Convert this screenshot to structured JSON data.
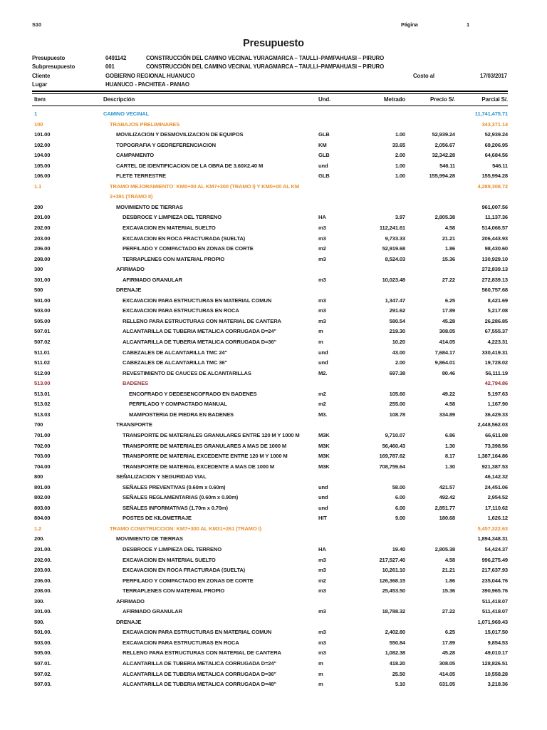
{
  "page": {
    "app_tag": "S10",
    "page_label": "Página",
    "page_number": "1"
  },
  "title": "Presupuesto",
  "meta": {
    "presupuesto_label": "Presupuesto",
    "presupuesto_code": "0491142",
    "presupuesto_name": "CONSTRUCCIÓN DEL CAMINO VECINAL YURAGMARCA – TAULLI–PAMPAHUASI – PIRURO",
    "subpresupuesto_label": "Subpresupuesto",
    "subpresupuesto_code": "001",
    "subpresupuesto_name": "CONSTRUCCIÓN DEL CAMINO VECINAL YURAGMARCA – TAULLI–PAMPAHUASI – PIRURO",
    "cliente_label": "Cliente",
    "cliente_name": "GOBIERNO REGIONAL HUANUCO",
    "costo_label": "Costo al",
    "costo_fecha": "17/03/2017",
    "lugar_label": "Lugar",
    "lugar_name": "HUANUCO - PACHITEA - PANAO"
  },
  "colors": {
    "blue": "#2E96D0",
    "orange": "#E8912E",
    "red": "#9C3232",
    "text": "#1C1C1C"
  },
  "table": {
    "headers": {
      "item": "Item",
      "desc": "Descripción",
      "und": "Und.",
      "metrado": "Metrado",
      "precio": "Precio S/.",
      "parcial": "Parcial S/."
    },
    "rows": [
      {
        "item": "1",
        "desc": "CAMINO VECINAL",
        "und": "",
        "metrado": "",
        "precio": "",
        "parcial": "11,741,475.71",
        "level": 1,
        "color": "blue"
      },
      {
        "item": "100",
        "desc": "TRABAJOS PRELIMINARES",
        "und": "",
        "metrado": "",
        "precio": "",
        "parcial": "343,371.14",
        "level": 2,
        "color": "orange"
      },
      {
        "item": "101.00",
        "desc": "MOVILIZACION Y DESMOVILIZACION DE EQUIPOS",
        "und": "GLB",
        "metrado": "1.00",
        "precio": "52,939.24",
        "parcial": "52,939.24",
        "level": 3,
        "color": ""
      },
      {
        "item": "102.00",
        "desc": "TOPOGRAFIA Y GEOREFERENCIACION",
        "und": "KM",
        "metrado": "33.65",
        "precio": "2,056.67",
        "parcial": "69,206.95",
        "level": 3,
        "color": ""
      },
      {
        "item": "104.00",
        "desc": "CAMPAMENTO",
        "und": "GLB",
        "metrado": "2.00",
        "precio": "32,342.28",
        "parcial": "64,684.56",
        "level": 3,
        "color": ""
      },
      {
        "item": "105.00",
        "desc": "CARTEL DE IDENTIFICACION DE LA OBRA DE 3.60X2.40 M",
        "und": "und",
        "metrado": "1.00",
        "precio": "546.11",
        "parcial": "546.11",
        "level": 3,
        "color": ""
      },
      {
        "item": "106.00",
        "desc": "FLETE TERRESTRE",
        "und": "GLB",
        "metrado": "1.00",
        "precio": "155,994.28",
        "parcial": "155,994.28",
        "level": 3,
        "color": ""
      },
      {
        "item": "1.1",
        "desc": "TRAMO MEJORAMIENTO: KM0+00 AL KM7+300 (TRAMO I) Y KM0+00 AL KM 2+391 (TRAMO II)",
        "und": "",
        "metrado": "",
        "precio": "",
        "parcial": "4,289,308.72",
        "level": 2,
        "color": "orange"
      },
      {
        "item": "200",
        "desc": "MOVIMIENTO DE TIERRAS",
        "und": "",
        "metrado": "",
        "precio": "",
        "parcial": "961,007.56",
        "level": 3,
        "color": ""
      },
      {
        "item": "201.00",
        "desc": "DESBROCE Y LIMPIEZA DEL TERRENO",
        "und": "HA",
        "metrado": "3.97",
        "precio": "2,805.38",
        "parcial": "11,137.36",
        "level": 4,
        "color": ""
      },
      {
        "item": "202.00",
        "desc": "EXCAVACION EN MATERIAL SUELTO",
        "und": "m3",
        "metrado": "112,241.61",
        "precio": "4.58",
        "parcial": "514,066.57",
        "level": 4,
        "color": ""
      },
      {
        "item": "203.00",
        "desc": "EXCAVACION EN ROCA FRACTURADA (SUELTA)",
        "und": "m3",
        "metrado": "9,733.33",
        "precio": "21.21",
        "parcial": "206,443.93",
        "level": 4,
        "color": ""
      },
      {
        "item": "206.00",
        "desc": "PERFILADO Y COMPACTADO EN ZONAS DE CORTE",
        "und": "m2",
        "metrado": "52,919.68",
        "precio": "1.86",
        "parcial": "98,430.60",
        "level": 4,
        "color": ""
      },
      {
        "item": "208.00",
        "desc": "TERRAPLENES CON MATERIAL PROPIO",
        "und": "m3",
        "metrado": "8,524.03",
        "precio": "15.36",
        "parcial": "130,929.10",
        "level": 4,
        "color": ""
      },
      {
        "item": "300",
        "desc": "AFIRMADO",
        "und": "",
        "metrado": "",
        "precio": "",
        "parcial": "272,839.13",
        "level": 3,
        "color": ""
      },
      {
        "item": "301.00",
        "desc": "AFIRMADO GRANULAR",
        "und": "m3",
        "metrado": "10,023.48",
        "precio": "27.22",
        "parcial": "272,839.13",
        "level": 4,
        "color": ""
      },
      {
        "item": "500",
        "desc": "DRENAJE",
        "und": "",
        "metrado": "",
        "precio": "",
        "parcial": "560,757.68",
        "level": 3,
        "color": ""
      },
      {
        "item": "501.00",
        "desc": "EXCAVACION PARA ESTRUCTURAS EN MATERIAL COMUN",
        "und": "m3",
        "metrado": "1,347.47",
        "precio": "6.25",
        "parcial": "8,421.69",
        "level": 4,
        "color": ""
      },
      {
        "item": "503.00",
        "desc": "EXCAVACION PARA ESTRUCTURAS EN ROCA",
        "und": "m3",
        "metrado": "291.62",
        "precio": "17.89",
        "parcial": "5,217.08",
        "level": 4,
        "color": ""
      },
      {
        "item": "505.00",
        "desc": "RELLENO PARA ESTRUCTURAS CON MATERIAL DE CANTERA",
        "und": "m3",
        "metrado": "580.54",
        "precio": "45.28",
        "parcial": "26,286.85",
        "level": 4,
        "color": ""
      },
      {
        "item": "507.01",
        "desc": "ALCANTARILLA DE TUBERIA METALICA CORRUGADA D=24\"",
        "und": "m",
        "metrado": "219.30",
        "precio": "308.05",
        "parcial": "67,555.37",
        "level": 4,
        "color": ""
      },
      {
        "item": "507.02",
        "desc": "ALCANTARILLA DE TUBERIA METALICA CORRUGADA D=36\"",
        "und": "m",
        "metrado": "10.20",
        "precio": "414.05",
        "parcial": "4,223.31",
        "level": 4,
        "color": ""
      },
      {
        "item": "511.01",
        "desc": "CABEZALES DE ALCANTARILLA TMC 24\"",
        "und": "und",
        "metrado": "43.00",
        "precio": "7,684.17",
        "parcial": "330,419.31",
        "level": 4,
        "color": ""
      },
      {
        "item": "511.02",
        "desc": "CABEZALES DE ALCANTARILLA TMC 36\"",
        "und": "und",
        "metrado": "2.00",
        "precio": "9,864.01",
        "parcial": "19,728.02",
        "level": 4,
        "color": ""
      },
      {
        "item": "512.00",
        "desc": "REVESTIMIENTO DE CAUCES DE ALCANTARILLAS",
        "und": "M2.",
        "metrado": "697.38",
        "precio": "80.46",
        "parcial": "56,111.19",
        "level": 4,
        "color": ""
      },
      {
        "item": "513.00",
        "desc": "BADENES",
        "und": "",
        "metrado": "",
        "precio": "",
        "parcial": "42,794.86",
        "level": 4,
        "color": "red"
      },
      {
        "item": "513.01",
        "desc": "ENCOFRADO Y DEDESENCOFRADO EN BADENES",
        "und": "m2",
        "metrado": "105.60",
        "precio": "49.22",
        "parcial": "5,197.63",
        "level": 5,
        "color": ""
      },
      {
        "item": "513.02",
        "desc": "PERFILADO Y COMPACTADO MANUAL",
        "und": "m2",
        "metrado": "255.00",
        "precio": "4.58",
        "parcial": "1,167.90",
        "level": 5,
        "color": ""
      },
      {
        "item": "513.03",
        "desc": "MAMPOSTERIA DE PIEDRA EN BADENES",
        "und": "M3.",
        "metrado": "108.78",
        "precio": "334.89",
        "parcial": "36,429.33",
        "level": 5,
        "color": ""
      },
      {
        "item": "700",
        "desc": "TRANSPORTE",
        "und": "",
        "metrado": "",
        "precio": "",
        "parcial": "2,448,562.03",
        "level": 3,
        "color": ""
      },
      {
        "item": "701.00",
        "desc": "TRANSPORTE DE MATERIALES GRANULARES ENTRE 120 M Y 1000 M",
        "und": "M3K",
        "metrado": "9,710.07",
        "precio": "6.86",
        "parcial": "66,611.08",
        "level": 4,
        "color": ""
      },
      {
        "item": "702.00",
        "desc": "TRANSPORTE DE MATERIALES GRANULARES A MAS DE 1000 M",
        "und": "M3K",
        "metrado": "56,460.43",
        "precio": "1.30",
        "parcial": "73,398.56",
        "level": 4,
        "color": ""
      },
      {
        "item": "703.00",
        "desc": "TRANSPORTE DE MATERIAL EXCEDENTE ENTRE 120 M Y 1000 M",
        "und": "M3K",
        "metrado": "169,787.62",
        "precio": "8.17",
        "parcial": "1,387,164.86",
        "level": 4,
        "color": ""
      },
      {
        "item": "704.00",
        "desc": "TRANSPORTE DE MATERIAL EXCEDENTE A MAS DE 1000 M",
        "und": "M3K",
        "metrado": "708,759.64",
        "precio": "1.30",
        "parcial": "921,387.53",
        "level": 4,
        "color": ""
      },
      {
        "item": "800",
        "desc": "SEÑALIZACION Y SEGURIDAD VIAL",
        "und": "",
        "metrado": "",
        "precio": "",
        "parcial": "46,142.32",
        "level": 3,
        "color": ""
      },
      {
        "item": "801.00",
        "desc": "SEÑALES PREVENTIVAS (0.60m x 0.60m)",
        "und": "und",
        "metrado": "58.00",
        "precio": "421.57",
        "parcial": "24,451.06",
        "level": 4,
        "color": ""
      },
      {
        "item": "802.00",
        "desc": "SEÑALES REGLAMENTARIAS (0.60m x 0.90m)",
        "und": "und",
        "metrado": "6.00",
        "precio": "492.42",
        "parcial": "2,954.52",
        "level": 4,
        "color": ""
      },
      {
        "item": "803.00",
        "desc": "SEÑALES INFORMATIVAS (1.70m x 0.70m)",
        "und": "und",
        "metrado": "6.00",
        "precio": "2,851.77",
        "parcial": "17,110.62",
        "level": 4,
        "color": ""
      },
      {
        "item": "804.00",
        "desc": "POSTES DE KILOMETRAJE",
        "und": "HIT",
        "metrado": "9.00",
        "precio": "180.68",
        "parcial": "1,626.12",
        "level": 4,
        "color": ""
      },
      {
        "item": "1.2",
        "desc": "TRAMO CONSTRUCCION: KM7+300 AL KM31+261 (TRAMO I)",
        "und": "",
        "metrado": "",
        "precio": "",
        "parcial": "5,457,322.63",
        "level": 2,
        "color": "orange"
      },
      {
        "item": "200.",
        "desc": "MOVIMIENTO DE TIERRAS",
        "und": "",
        "metrado": "",
        "precio": "",
        "parcial": "1,894,348.31",
        "level": 3,
        "color": ""
      },
      {
        "item": "201.00.",
        "desc": "DESBROCE Y LIMPIEZA DEL TERRENO",
        "und": "HA",
        "metrado": "19.40",
        "precio": "2,805.38",
        "parcial": "54,424.37",
        "level": 4,
        "color": ""
      },
      {
        "item": "202.00.",
        "desc": "EXCAVACION EN MATERIAL SUELTO",
        "und": "m3",
        "metrado": "217,527.40",
        "precio": "4.58",
        "parcial": "996,275.49",
        "level": 4,
        "color": ""
      },
      {
        "item": "203.00.",
        "desc": "EXCAVACION EN ROCA FRACTURADA (SUELTA)",
        "und": "m3",
        "metrado": "10,261.10",
        "precio": "21.21",
        "parcial": "217,637.93",
        "level": 4,
        "color": ""
      },
      {
        "item": "206.00.",
        "desc": "PERFILADO Y COMPACTADO EN ZONAS DE CORTE",
        "und": "m2",
        "metrado": "126,368.15",
        "precio": "1.86",
        "parcial": "235,044.76",
        "level": 4,
        "color": ""
      },
      {
        "item": "208.00.",
        "desc": "TERRAPLENES CON MATERIAL PROPIO",
        "und": "m3",
        "metrado": "25,453.50",
        "precio": "15.36",
        "parcial": "390,965.76",
        "level": 4,
        "color": ""
      },
      {
        "item": "300.",
        "desc": "AFIRMADO",
        "und": "",
        "metrado": "",
        "precio": "",
        "parcial": "511,418.07",
        "level": 3,
        "color": ""
      },
      {
        "item": "301.00.",
        "desc": "AFIRMADO GRANULAR",
        "und": "m3",
        "metrado": "18,788.32",
        "precio": "27.22",
        "parcial": "511,418.07",
        "level": 4,
        "color": ""
      },
      {
        "item": "500.",
        "desc": "DRENAJE",
        "und": "",
        "metrado": "",
        "precio": "",
        "parcial": "1,071,969.43",
        "level": 3,
        "color": ""
      },
      {
        "item": "501.00.",
        "desc": "EXCAVACION PARA ESTRUCTURAS EN MATERIAL COMUN",
        "und": "m3",
        "metrado": "2,402.80",
        "precio": "6.25",
        "parcial": "15,017.50",
        "level": 4,
        "color": ""
      },
      {
        "item": "503.00.",
        "desc": "EXCAVACION PARA ESTRUCTURAS EN ROCA",
        "und": "m3",
        "metrado": "550.84",
        "precio": "17.89",
        "parcial": "9,854.53",
        "level": 4,
        "color": ""
      },
      {
        "item": "505.00.",
        "desc": "RELLENO PARA ESTRUCTURAS CON MATERIAL DE CANTERA",
        "und": "m3",
        "metrado": "1,082.38",
        "precio": "45.28",
        "parcial": "49,010.17",
        "level": 4,
        "color": ""
      },
      {
        "item": "507.01.",
        "desc": "ALCANTARILLA DE TUBERIA METALICA CORRUGADA D=24\"",
        "und": "m",
        "metrado": "418.20",
        "precio": "308.05",
        "parcial": "128,826.51",
        "level": 4,
        "color": ""
      },
      {
        "item": "507.02.",
        "desc": "ALCANTARILLA DE TUBERIA METALICA CORRUGADA D=36\"",
        "und": "m",
        "metrado": "25.50",
        "precio": "414.05",
        "parcial": "10,558.28",
        "level": 4,
        "color": ""
      },
      {
        "item": "507.03.",
        "desc": "ALCANTARILLA DE TUBERIA METALICA CORRUGADA D=48\"",
        "und": "m",
        "metrado": "5.10",
        "precio": "631.05",
        "parcial": "3,218.36",
        "level": 4,
        "color": ""
      }
    ]
  }
}
